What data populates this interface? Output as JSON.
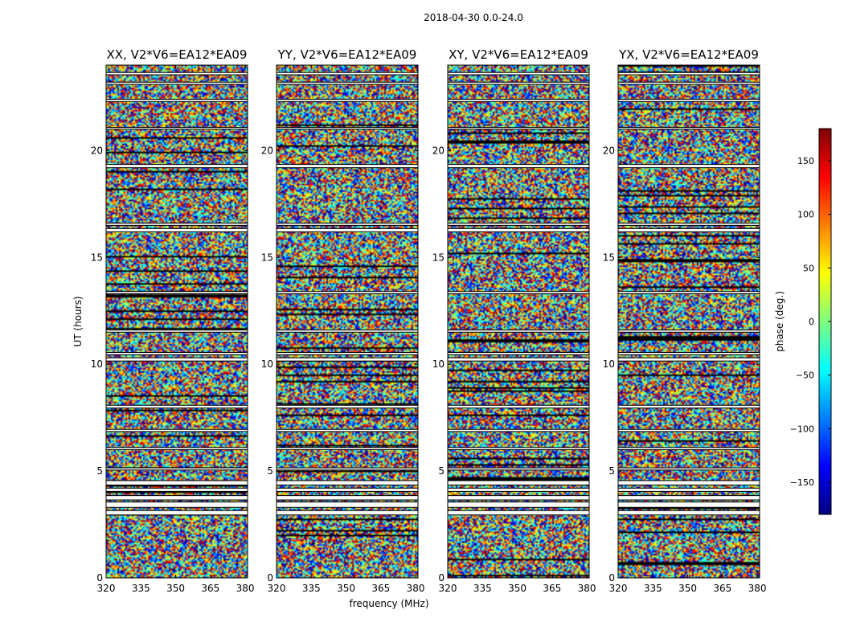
{
  "figure_title": "2018-04-30 0.0-24.0",
  "colors": {
    "background": "#ffffff",
    "frame": "#000000",
    "flag": "#ffffff",
    "colormap_stops": [
      "#00007f",
      "#0000ff",
      "#007fff",
      "#00ffff",
      "#7fff7f",
      "#ffff00",
      "#ff7f00",
      "#ff0000",
      "#7f0000"
    ]
  },
  "chart_data": {
    "type": "heatmap",
    "colormap": "jet",
    "xlabel": "frequency (MHz)",
    "ylabel": "UT (hours)",
    "xlim": [
      320,
      381
    ],
    "ylim": [
      0,
      24
    ],
    "xticks": [
      320,
      335,
      350,
      365,
      380
    ],
    "yticks": [
      0,
      5,
      10,
      15,
      20
    ],
    "panels": [
      {
        "title": "XX, V2*V6=EA12*EA09"
      },
      {
        "title": "YY, V2*V6=EA12*EA09"
      },
      {
        "title": "XY, V2*V6=EA12*EA09"
      },
      {
        "title": "YX, V2*V6=EA12*EA09"
      }
    ],
    "flagged_ut_ranges_hours": [
      [
        2.95,
        3.15
      ],
      [
        3.3,
        3.55
      ],
      [
        3.65,
        3.85
      ],
      [
        4.05,
        4.2
      ],
      [
        4.35,
        4.55
      ],
      [
        5.05,
        5.15
      ],
      [
        6.0,
        6.1
      ],
      [
        6.85,
        6.95
      ],
      [
        7.95,
        8.08
      ],
      [
        10.15,
        10.3
      ],
      [
        10.45,
        10.55
      ],
      [
        11.5,
        11.6
      ],
      [
        13.3,
        13.4
      ],
      [
        16.2,
        16.35
      ],
      [
        16.5,
        16.6
      ],
      [
        19.2,
        19.35
      ],
      [
        21.0,
        21.08
      ],
      [
        22.3,
        22.4
      ],
      [
        23.1,
        23.2
      ],
      [
        23.55,
        23.65
      ]
    ],
    "colorbar": {
      "label": "phase (deg.)",
      "range": [
        -180,
        180
      ],
      "ticks": [
        -150,
        -100,
        -50,
        0,
        50,
        100,
        150
      ],
      "tick_labels": [
        "−150",
        "−100",
        "−50",
        "0",
        "50",
        "100",
        "150"
      ]
    }
  }
}
